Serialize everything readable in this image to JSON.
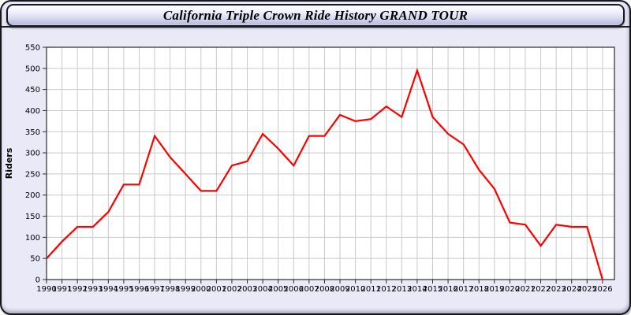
{
  "window": {
    "title": "California Triple Crown Ride History GRAND TOUR"
  },
  "colors": {
    "line": "#ff0000",
    "panel_background": "#e9e9f8",
    "plot_background": "#ffffff",
    "gridline": "#c9c9c9",
    "axis_border": "#2a2a2a",
    "tick_label": "#000000"
  },
  "chart_data": {
    "type": "line",
    "title": "California Triple Crown Ride History GRAND TOUR",
    "xlabel": "",
    "ylabel": "Riders",
    "x": [
      1990,
      1991,
      1992,
      1993,
      1994,
      1995,
      1996,
      1997,
      1998,
      1999,
      2000,
      2001,
      2002,
      2003,
      2004,
      2005,
      2006,
      2007,
      2008,
      2009,
      2010,
      2011,
      2012,
      2013,
      2014,
      2015,
      2016,
      2017,
      2018,
      2019,
      2020,
      2021,
      2022,
      2023,
      2024,
      2025,
      2026
    ],
    "series": [
      {
        "name": "Riders",
        "color": "#ff0000",
        "values": [
          50,
          90,
          125,
          125,
          160,
          225,
          225,
          340,
          290,
          250,
          210,
          210,
          270,
          280,
          345,
          310,
          270,
          340,
          340,
          390,
          375,
          380,
          410,
          385,
          495,
          385,
          345,
          320,
          260,
          215,
          135,
          130,
          80,
          130,
          125,
          125,
          0
        ]
      }
    ],
    "ylim": [
      0,
      550
    ],
    "ytick_step": 50,
    "grid": true,
    "legend_position": "none"
  }
}
